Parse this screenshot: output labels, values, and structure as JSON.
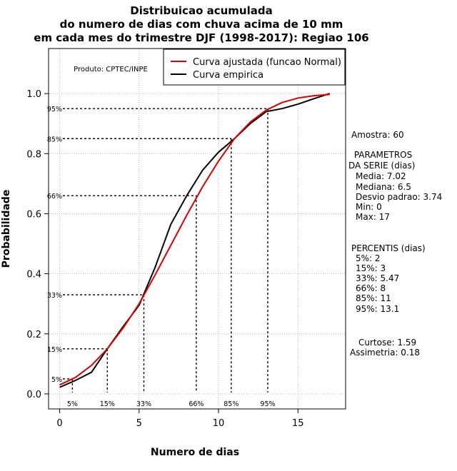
{
  "chart_data": {
    "type": "line",
    "title_lines": [
      "Distribuicao acumulada",
      "do numero de dias com chuva acima de 10 mm",
      "em cada mes do trimestre DJF (1998-2017): Regiao 106"
    ],
    "xlabel": "Numero de dias",
    "ylabel": "Probabilidade",
    "xlim": [
      -0.7,
      18.0
    ],
    "ylim": [
      -0.05,
      1.15
    ],
    "xticks": [
      0,
      5,
      10,
      15
    ],
    "yticks": [
      0.0,
      0.2,
      0.4,
      0.6,
      0.8,
      1.0
    ],
    "ytick_labels": [
      "0.0",
      "0.2",
      "0.4",
      "0.6",
      "0.8",
      "1.0"
    ],
    "grid": true,
    "product_label": "Produto: CPTEC/INPE",
    "legend": {
      "position": "top-right",
      "entries": [
        {
          "label": "Curva ajustada (funcao Normal)",
          "color": "#dd0000"
        },
        {
          "label": "Curva empirica",
          "color": "#000000"
        }
      ]
    },
    "series": [
      {
        "name": "Curva ajustada (funcao Normal)",
        "color": "#dd0000",
        "x": [
          0,
          1,
          2,
          3,
          4,
          5,
          6,
          7,
          8,
          9,
          10,
          11,
          12,
          13,
          14,
          15,
          16,
          17
        ],
        "y": [
          0.03,
          0.055,
          0.095,
          0.15,
          0.22,
          0.3,
          0.395,
          0.495,
          0.595,
          0.69,
          0.775,
          0.85,
          0.905,
          0.945,
          0.97,
          0.985,
          0.993,
          0.997
        ]
      },
      {
        "name": "Curva empirica",
        "color": "#000000",
        "x": [
          0,
          1,
          2,
          3,
          4,
          5,
          6,
          7,
          8,
          9,
          10,
          11,
          12,
          13,
          14,
          15,
          16,
          17
        ],
        "y": [
          0.022,
          0.045,
          0.072,
          0.15,
          0.225,
          0.295,
          0.42,
          0.565,
          0.66,
          0.745,
          0.805,
          0.85,
          0.9,
          0.94,
          0.95,
          0.965,
          0.983,
          1.0
        ]
      }
    ],
    "percentile_markers": [
      {
        "label": "5%",
        "p": 0.05,
        "x": 0.8
      },
      {
        "label": "15%",
        "p": 0.15,
        "x": 3.0
      },
      {
        "label": "33%",
        "p": 0.33,
        "x": 5.3
      },
      {
        "label": "66%",
        "p": 0.66,
        "x": 8.6
      },
      {
        "label": "85%",
        "p": 0.85,
        "x": 10.8
      },
      {
        "label": "95%",
        "p": 0.95,
        "x": 13.1
      }
    ]
  },
  "stats": {
    "amostra": "Amostra: 60",
    "param_title_1": " PARAMETROS",
    "param_title_2": "DA SERIE (dias)",
    "media": "Media: 7.02",
    "mediana": "Mediana: 6.5",
    "desvio": "Desvio padrao: 3.74",
    "min": "Min: 0",
    "max": "Max: 17",
    "percentis_title": "PERCENTIS (dias)",
    "p5": "5%: 2",
    "p15": "15%: 3",
    "p33": "33%: 5.47",
    "p66": "66%: 8",
    "p85": "85%: 11",
    "p95": "95%: 13.1",
    "curtose": "Curtose: 1.59",
    "assimetria": "Assimetria: 0.18"
  }
}
